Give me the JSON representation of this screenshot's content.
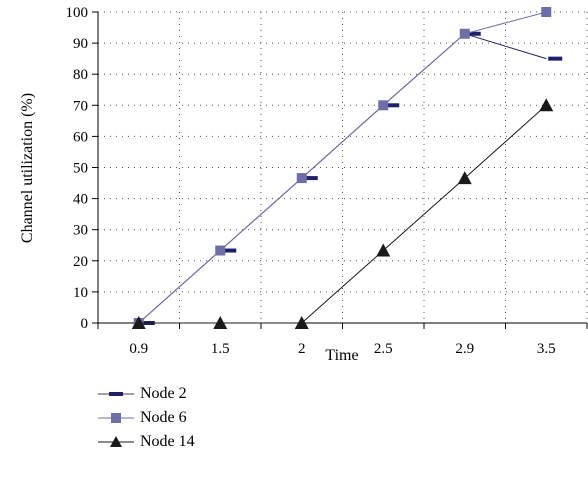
{
  "chart_data": {
    "type": "line",
    "categories": [
      "0.9",
      "1.5",
      "2",
      "2.5",
      "2.9",
      "3.5"
    ],
    "xlabel": "Time",
    "ylabel": "Channel utilization (%)",
    "ylim": [
      0,
      100
    ],
    "yticks": [
      0,
      10,
      20,
      30,
      40,
      50,
      60,
      70,
      80,
      90,
      100
    ],
    "grid": "dotted",
    "legend_position": "bottom",
    "series": [
      {
        "name": "Node 2",
        "marker": "dash",
        "color": "#1f1f6b",
        "values": [
          0,
          23.3,
          46.6,
          70,
          93,
          85
        ]
      },
      {
        "name": "Node 6",
        "marker": "square",
        "color": "#6f6fa8",
        "values": [
          0,
          23.3,
          46.6,
          70,
          93,
          100
        ]
      },
      {
        "name": "Node 14",
        "marker": "triangle",
        "color": "#1a1a1a",
        "values": [
          0,
          0,
          0,
          23.3,
          46.6,
          70
        ]
      }
    ]
  }
}
